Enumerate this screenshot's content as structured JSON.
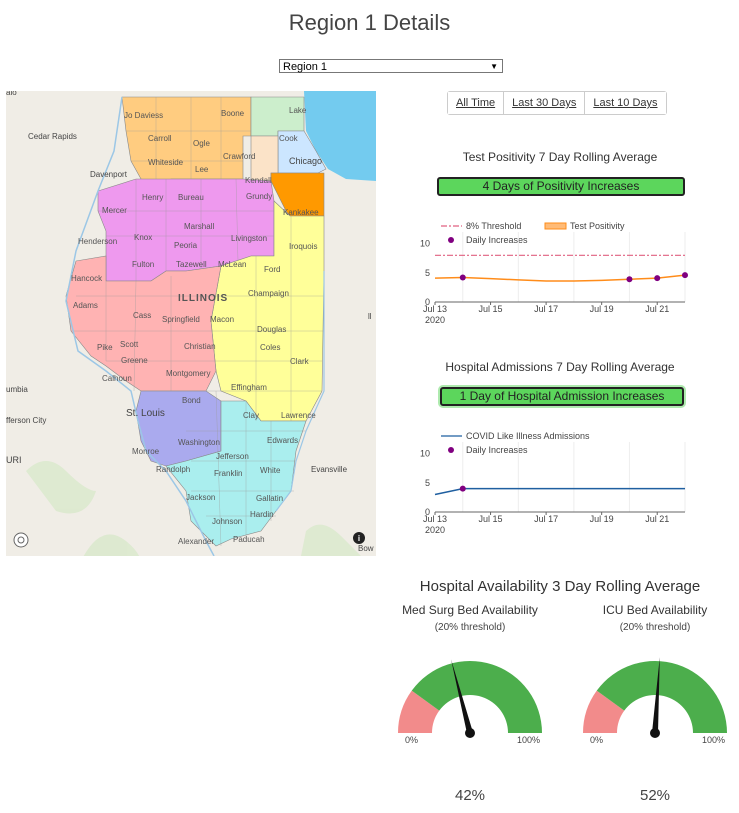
{
  "page": {
    "title": "Region 1 Details"
  },
  "region_select": {
    "value": "Region 1"
  },
  "range_buttons": [
    "All Time",
    "Last 30 Days",
    "Last 10 Days"
  ],
  "map": {
    "state_label": "ILLINOIS",
    "places": [
      "Cedar Rapids",
      "Davenport",
      "Chicago",
      "St. Louis",
      "Evansville",
      "umbia",
      "fferson City",
      "URI",
      "ll",
      "Bow",
      "alo"
    ],
    "counties": [
      "Jo Daviess",
      "Boone",
      "Lake",
      "Carroll",
      "Ogle",
      "Cook",
      "Whiteside",
      "Lee",
      "Crawford",
      "Kendall",
      "Henry",
      "Bureau",
      "Grundy",
      "Mercer",
      "Kankakee",
      "Knox",
      "Marshall",
      "Henderson",
      "Peoria",
      "Livingston",
      "Iroquois",
      "Hancock",
      "Fulton",
      "Tazewell",
      "McLean",
      "Ford",
      "Adams",
      "Champaign",
      "Cass",
      "Springfield",
      "Macon",
      "Pike",
      "Scott",
      "Christian",
      "Douglas",
      "Greene",
      "Coles",
      "Calhoun",
      "Montgomery",
      "Clark",
      "Effingham",
      "Bond",
      "Clay",
      "Lawrence",
      "Washington",
      "Monroe",
      "Jefferson",
      "Edwards",
      "Randolph",
      "Franklin",
      "White",
      "Jackson",
      "Gallatin",
      "Hardin",
      "Johnson",
      "Alexander",
      "Paducah"
    ],
    "colors": {
      "water": "#73cbef",
      "r1": "#ffcc80",
      "r2": "#ee99ee",
      "r3": "#ffb3b3",
      "r4": "#aaaaee",
      "r5": "#aaeeee",
      "r6": "#ffff99",
      "r7": "#ff9900",
      "r8": "#cceecc",
      "r9": "#cce6ff"
    }
  },
  "positivity": {
    "title": "Test Positivity 7 Day Rolling Average",
    "badge": "4 Days of Positivity Increases",
    "legend": {
      "threshold": "8% Threshold",
      "series": "Test Positivity",
      "increases": "Daily Increases"
    }
  },
  "admissions": {
    "title": "Hospital Admissions 7 Day Rolling Average",
    "badge": "1 Day of Hospital Admission Increases",
    "legend": {
      "series": "COVID Like Illness Admissions",
      "increases": "Daily Increases"
    }
  },
  "availability": {
    "title": "Hospital Availability 3 Day Rolling Average",
    "med_surg": {
      "title": "Med Surg Bed Availability",
      "subtitle": "(20% threshold)",
      "min": "0%",
      "max": "100%",
      "value_label": "42%",
      "value": 42,
      "threshold": 20
    },
    "icu": {
      "title": "ICU Bed Availability",
      "subtitle": "(20% threshold)",
      "min": "0%",
      "max": "100%",
      "value_label": "52%",
      "value": 52,
      "threshold": 20
    }
  },
  "chart_data": [
    {
      "type": "line",
      "title": "Test Positivity 7 Day Rolling Average",
      "x": [
        "2020-07-13",
        "2020-07-14",
        "2020-07-15",
        "2020-07-16",
        "2020-07-17",
        "2020-07-18",
        "2020-07-19",
        "2020-07-20",
        "2020-07-21",
        "2020-07-22"
      ],
      "x_tick_labels": [
        "Jul 13",
        "2020",
        "Jul 15",
        "Jul 17",
        "Jul 19",
        "Jul 21"
      ],
      "y_ticks": [
        "0",
        "5",
        "10"
      ],
      "ylim": [
        0,
        12
      ],
      "series": [
        {
          "name": "Test Positivity",
          "values": [
            4.1,
            4.2,
            4.0,
            3.8,
            3.6,
            3.6,
            3.7,
            3.9,
            4.1,
            4.6
          ],
          "color": "#ff8c1a"
        },
        {
          "name": "8% Threshold",
          "values": [
            8,
            8,
            8,
            8,
            8,
            8,
            8,
            8,
            8,
            8
          ],
          "color": "#e06080"
        },
        {
          "name": "Daily Increases",
          "points": [
            [
              "2020-07-14",
              4.2
            ],
            [
              "2020-07-20",
              3.9
            ],
            [
              "2020-07-21",
              4.1
            ],
            [
              "2020-07-22",
              4.6
            ]
          ],
          "color": "#800080"
        }
      ]
    },
    {
      "type": "line",
      "title": "Hospital Admissions 7 Day Rolling Average",
      "x": [
        "2020-07-13",
        "2020-07-14",
        "2020-07-15",
        "2020-07-16",
        "2020-07-17",
        "2020-07-18",
        "2020-07-19",
        "2020-07-20",
        "2020-07-21",
        "2020-07-22"
      ],
      "x_tick_labels": [
        "Jul 13",
        "2020",
        "Jul 15",
        "Jul 17",
        "Jul 19",
        "Jul 21"
      ],
      "y_ticks": [
        "0",
        "5",
        "10"
      ],
      "ylim": [
        0,
        12
      ],
      "series": [
        {
          "name": "COVID Like Illness Admissions",
          "values": [
            3.0,
            4.0,
            4.0,
            4.0,
            4.0,
            4.0,
            4.0,
            4.0,
            4.0,
            4.0
          ],
          "color": "#1f5fa0"
        },
        {
          "name": "Daily Increases",
          "points": [
            [
              "2020-07-14",
              4.0
            ]
          ],
          "color": "#800080"
        }
      ]
    }
  ]
}
